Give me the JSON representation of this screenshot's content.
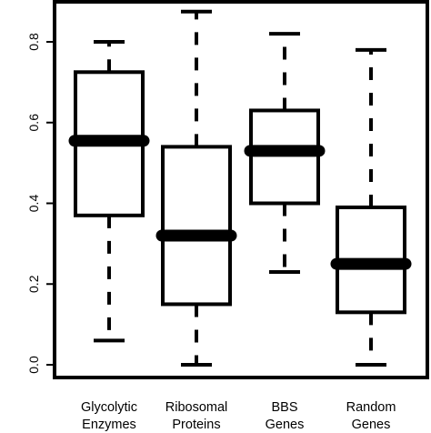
{
  "chart_data": {
    "type": "boxplot",
    "title": "",
    "xlabel": "",
    "ylabel": "",
    "ylim": [
      0.0,
      0.88
    ],
    "yticks": [
      "0.0",
      "0.2",
      "0.4",
      "0.6",
      "0.8"
    ],
    "ytick_values": [
      0.0,
      0.2,
      0.4,
      0.6,
      0.8
    ],
    "grid": false,
    "categories": [
      {
        "line1": "Glycolytic",
        "line2": "Enzymes"
      },
      {
        "line1": "Ribosomal",
        "line2": "Proteins"
      },
      {
        "line1": "BBS",
        "line2": "Genes"
      },
      {
        "line1": "Random",
        "line2": "Genes"
      }
    ],
    "boxes": [
      {
        "whisker_low": 0.06,
        "q1": 0.37,
        "median": 0.555,
        "q3": 0.725,
        "whisker_high": 0.8
      },
      {
        "whisker_low": 0.0,
        "q1": 0.15,
        "median": 0.32,
        "q3": 0.54,
        "whisker_high": 0.875
      },
      {
        "whisker_low": 0.23,
        "q1": 0.4,
        "median": 0.53,
        "q3": 0.63,
        "whisker_high": 0.82
      },
      {
        "whisker_low": 0.0,
        "q1": 0.13,
        "median": 0.25,
        "q3": 0.39,
        "whisker_high": 0.78
      }
    ],
    "colors": {
      "box": "#000000",
      "background": "#ffffff"
    }
  }
}
